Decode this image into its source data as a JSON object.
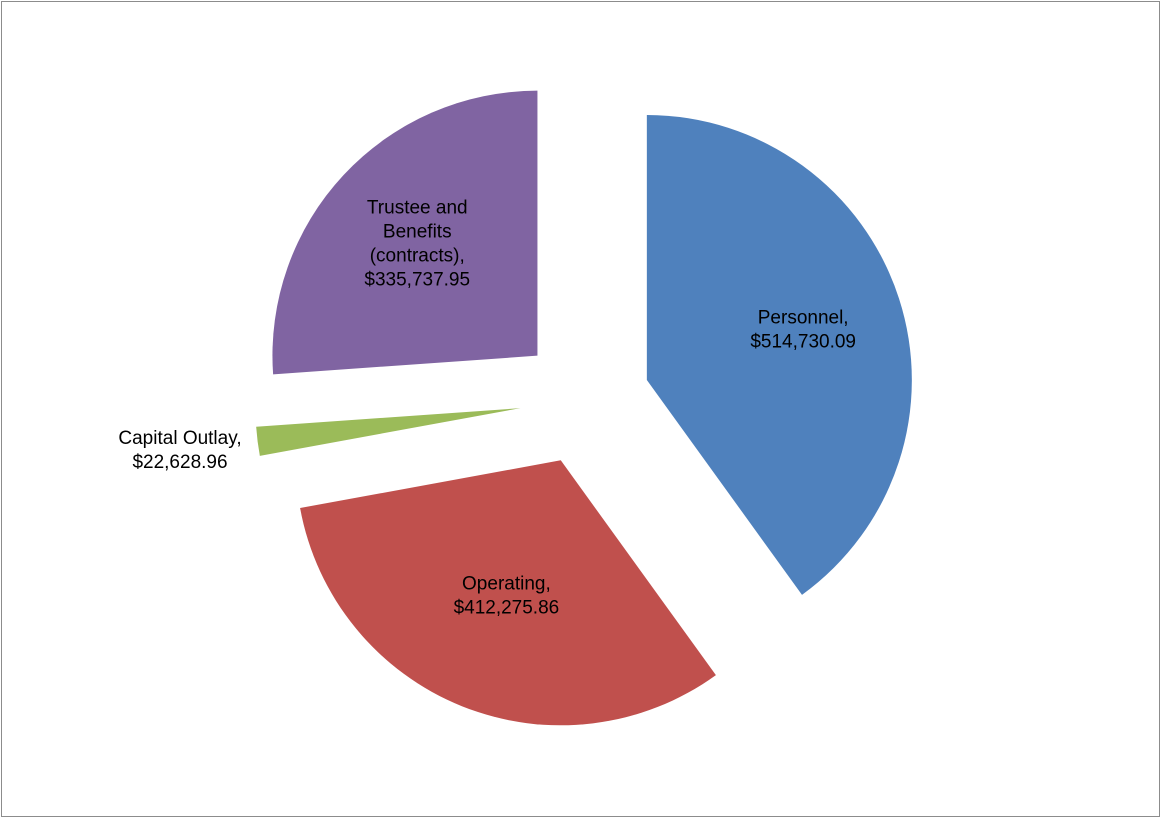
{
  "chart_data": {
    "type": "pie",
    "title": "",
    "categories": [
      "Personnel",
      "Operating",
      "Capital Outlay",
      "Trustee and Benefits (contracts)"
    ],
    "values": [
      514730.09,
      412275.86,
      22628.96,
      335737.95
    ],
    "exploded": true,
    "legend": "none",
    "colors": [
      "#4f81bd",
      "#c0504d",
      "#9bbb59",
      "#8064a2"
    ],
    "labels": [
      {
        "lines": [
          "Personnel,",
          "$514,730.09"
        ]
      },
      {
        "lines": [
          "Operating,",
          "$412,275.86"
        ]
      },
      {
        "lines": [
          "Capital Outlay,",
          "$22,628.96"
        ]
      },
      {
        "lines": [
          "Trustee and",
          "Benefits",
          "(contracts),",
          "$335,737.95"
        ]
      }
    ]
  }
}
